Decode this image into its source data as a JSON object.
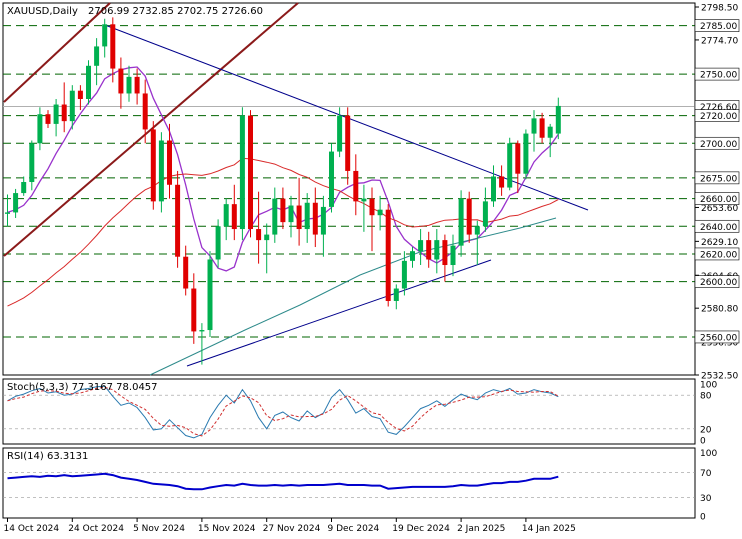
{
  "chart_data": {
    "type": "candlestick",
    "symbol": "XAUUSD,Daily",
    "ohlc_label": "2706.99 2732.85 2702.75 2726.60",
    "ylim": [
      2532.5,
      2798.5
    ],
    "price_ticks": [
      {
        "label": "2798.50",
        "value": 2798.5
      },
      {
        "label": "2774.70",
        "value": 2774.7
      },
      {
        "label": "2653.60",
        "value": 2653.6
      },
      {
        "label": "2629.10",
        "value": 2629.1
      },
      {
        "label": "2604.60",
        "value": 2604.6
      },
      {
        "label": "2580.80",
        "value": 2580.8
      },
      {
        "label": "2556.30",
        "value": 2556.3
      },
      {
        "label": "2532.50",
        "value": 2532.5
      }
    ],
    "levels": [
      {
        "label": "2785.00",
        "value": 2785.0
      },
      {
        "label": "2750.00",
        "value": 2750.0
      },
      {
        "label": "2720.00",
        "value": 2720.0
      },
      {
        "label": "2700.00",
        "value": 2700.0
      },
      {
        "label": "2675.00",
        "value": 2675.0
      },
      {
        "label": "2660.00",
        "value": 2660.0
      },
      {
        "label": "2640.00",
        "value": 2640.0
      },
      {
        "label": "2620.00",
        "value": 2620.0
      },
      {
        "label": "2600.00",
        "value": 2600.0
      },
      {
        "label": "2560.00",
        "value": 2560.0
      }
    ],
    "current_price": {
      "label": "2726.60",
      "value": 2726.6
    },
    "date_labels": [
      {
        "label": "14 Oct 2024",
        "index": 0
      },
      {
        "label": "24 Oct 2024",
        "index": 8
      },
      {
        "label": "5 Nov 2024",
        "index": 16
      },
      {
        "label": "15 Nov 2024",
        "index": 24
      },
      {
        "label": "27 Nov 2024",
        "index": 32
      },
      {
        "label": "9 Dec 2024",
        "index": 40
      },
      {
        "label": "19 Dec 2024",
        "index": 48
      },
      {
        "label": "2 Jan 2025",
        "index": 56
      },
      {
        "label": "14 Jan 2025",
        "index": 64
      }
    ],
    "candles": [
      [
        2649,
        2663,
        2640,
        2650
      ],
      [
        2650,
        2667,
        2646,
        2664
      ],
      [
        2664,
        2676,
        2662,
        2672
      ],
      [
        2672,
        2702,
        2666,
        2700
      ],
      [
        2700,
        2726,
        2695,
        2721
      ],
      [
        2721,
        2724,
        2711,
        2714
      ],
      [
        2714,
        2732,
        2705,
        2728
      ],
      [
        2728,
        2744,
        2708,
        2716
      ],
      [
        2716,
        2742,
        2710,
        2738
      ],
      [
        2738,
        2742,
        2724,
        2732
      ],
      [
        2732,
        2760,
        2728,
        2756
      ],
      [
        2756,
        2776,
        2742,
        2770
      ],
      [
        2770,
        2790,
        2762,
        2786
      ],
      [
        2786,
        2791,
        2744,
        2754
      ],
      [
        2754,
        2762,
        2725,
        2736
      ],
      [
        2736,
        2756,
        2730,
        2748
      ],
      [
        2748,
        2754,
        2728,
        2736
      ],
      [
        2736,
        2746,
        2700,
        2710
      ],
      [
        2710,
        2716,
        2652,
        2658
      ],
      [
        2658,
        2708,
        2650,
        2702
      ],
      [
        2702,
        2714,
        2660,
        2670
      ],
      [
        2670,
        2680,
        2610,
        2618
      ],
      [
        2618,
        2626,
        2590,
        2595
      ],
      [
        2595,
        2606,
        2555,
        2564
      ],
      [
        2564,
        2570,
        2540,
        2565
      ],
      [
        2565,
        2622,
        2560,
        2616
      ],
      [
        2616,
        2645,
        2610,
        2640
      ],
      [
        2640,
        2660,
        2630,
        2656
      ],
      [
        2656,
        2670,
        2630,
        2638
      ],
      [
        2638,
        2726,
        2630,
        2720
      ],
      [
        2720,
        2724,
        2632,
        2638
      ],
      [
        2638,
        2665,
        2613,
        2630
      ],
      [
        2630,
        2642,
        2606,
        2634
      ],
      [
        2634,
        2668,
        2628,
        2660
      ],
      [
        2660,
        2668,
        2638,
        2643
      ],
      [
        2643,
        2662,
        2632,
        2655
      ],
      [
        2655,
        2675,
        2626,
        2638
      ],
      [
        2638,
        2664,
        2628,
        2657
      ],
      [
        2657,
        2668,
        2625,
        2634
      ],
      [
        2634,
        2662,
        2618,
        2654
      ],
      [
        2654,
        2700,
        2650,
        2694
      ],
      [
        2694,
        2726,
        2690,
        2720
      ],
      [
        2720,
        2726,
        2670,
        2680
      ],
      [
        2680,
        2692,
        2648,
        2658
      ],
      [
        2658,
        2670,
        2636,
        2660
      ],
      [
        2660,
        2668,
        2622,
        2648
      ],
      [
        2648,
        2662,
        2637,
        2652
      ],
      [
        2652,
        2656,
        2582,
        2586
      ],
      [
        2586,
        2598,
        2580,
        2595
      ],
      [
        2595,
        2622,
        2590,
        2615
      ],
      [
        2615,
        2625,
        2610,
        2622
      ],
      [
        2622,
        2638,
        2612,
        2630
      ],
      [
        2630,
        2636,
        2610,
        2616
      ],
      [
        2616,
        2638,
        2606,
        2630
      ],
      [
        2630,
        2634,
        2600,
        2612
      ],
      [
        2612,
        2634,
        2604,
        2626
      ],
      [
        2626,
        2666,
        2618,
        2660
      ],
      [
        2660,
        2665,
        2628,
        2634
      ],
      [
        2634,
        2644,
        2612,
        2640
      ],
      [
        2640,
        2668,
        2636,
        2658
      ],
      [
        2658,
        2684,
        2654,
        2676
      ],
      [
        2676,
        2684,
        2662,
        2668
      ],
      [
        2668,
        2704,
        2666,
        2700
      ],
      [
        2700,
        2702,
        2664,
        2678
      ],
      [
        2678,
        2710,
        2674,
        2707
      ],
      [
        2707,
        2724,
        2694,
        2718
      ],
      [
        2718,
        2722,
        2700,
        2704
      ],
      [
        2704,
        2714,
        2690,
        2712
      ],
      [
        2707,
        2733,
        2703,
        2727
      ]
    ],
    "stochastic": {
      "label": "Stoch(5,3,3) 77.3167 78.0457",
      "levels": [
        "100",
        "80",
        "20",
        "0"
      ],
      "k_last": 77.3167,
      "d_last": 78.0457
    },
    "rsi": {
      "label": "RSI(14) 63.3131",
      "levels": [
        "100",
        "70",
        "30",
        "0"
      ],
      "last": 63.3131
    },
    "colors": {
      "bull": "#00b050",
      "bear": "#e00000",
      "level": "#006400",
      "trend": "#00008b",
      "channel": "#8b1a1a",
      "ma_fast": "#9932cc",
      "ma_mid": "#d92a2a",
      "ma_slow": "#2e8b8b",
      "stoch_k": "#2a7ab0",
      "stoch_d": "#d03030",
      "rsi": "#0000cc"
    }
  }
}
